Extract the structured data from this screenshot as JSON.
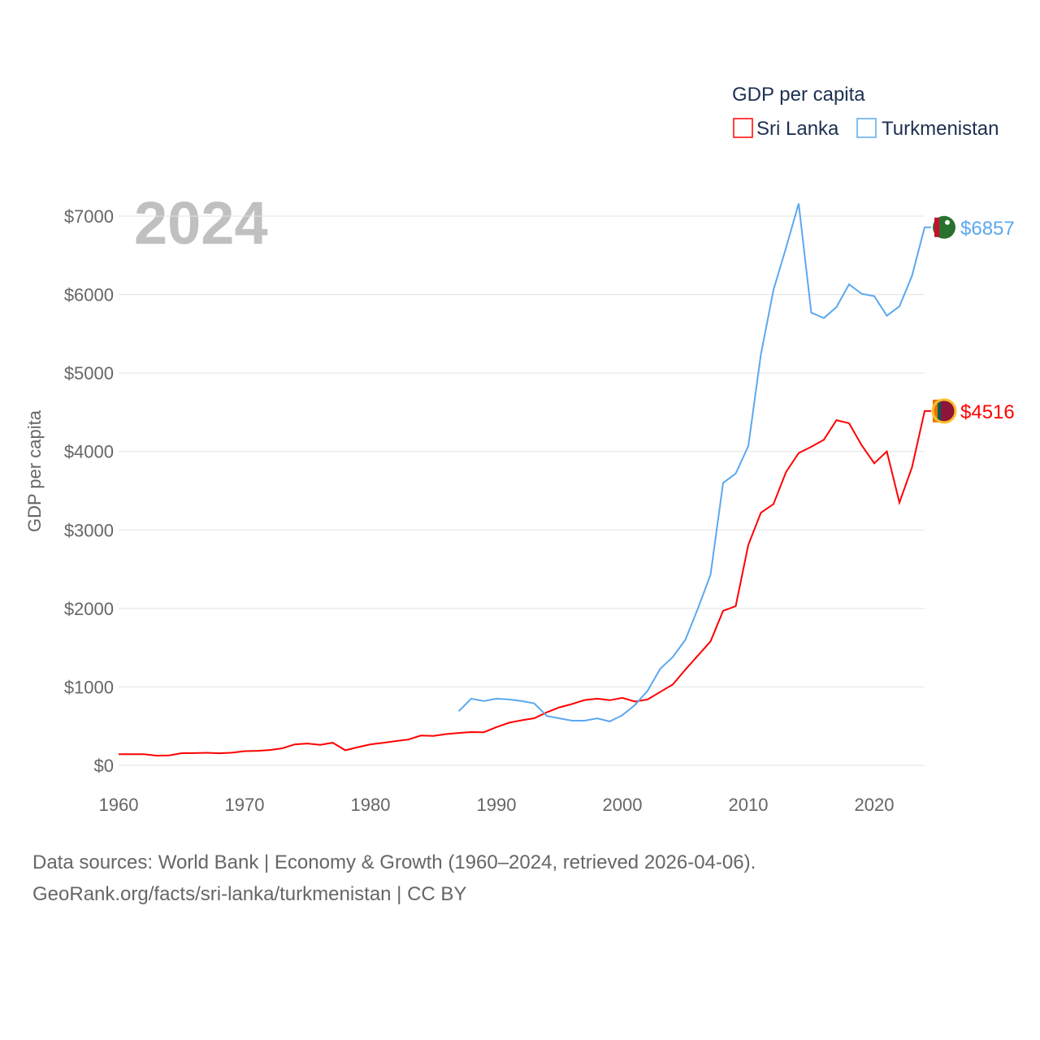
{
  "chart_data": {
    "type": "line",
    "legend_title": "GDP per capita",
    "ylabel": "GDP per capita",
    "xlabel": "",
    "year_label": "2024",
    "legend_position": "top-right",
    "xlim": [
      1960,
      2024
    ],
    "ylim": [
      0,
      7000
    ],
    "x_ticks": [
      "1960",
      "1970",
      "1980",
      "1990",
      "2000",
      "2010",
      "2020"
    ],
    "y_ticks": [
      "$0",
      "$1000",
      "$2000",
      "$3000",
      "$4000",
      "$5000",
      "$6000",
      "$7000"
    ],
    "grid": true,
    "series": [
      {
        "name": "Sri Lanka",
        "color": "#ff0000",
        "end_label": "$4516",
        "start_year": 1960,
        "values": [
          143,
          143,
          142,
          124,
          127,
          155,
          156,
          160,
          154,
          162,
          181,
          185,
          196,
          217,
          268,
          279,
          262,
          289,
          193,
          232,
          268,
          288,
          310,
          329,
          380,
          376,
          399,
          413,
          425,
          423,
          488,
          544,
          575,
          601,
          676,
          739,
          782,
          833,
          850,
          830,
          861,
          813,
          840,
          935,
          1030,
          1220,
          1400,
          1580,
          1970,
          2030,
          2810,
          3220,
          3330,
          3740,
          3980,
          4060,
          4150,
          4400,
          4360,
          4080,
          3850,
          4000,
          3350,
          3800,
          4516
        ]
      },
      {
        "name": "Turkmenistan",
        "color": "#5ba8ef",
        "end_label": "$6857",
        "start_year": 1987,
        "values": [
          690,
          850,
          820,
          850,
          840,
          820,
          790,
          630,
          600,
          570,
          570,
          600,
          560,
          640,
          770,
          950,
          1230,
          1380,
          1600,
          2000,
          2430,
          3600,
          3720,
          4070,
          5240,
          6060,
          6600,
          7160,
          5770,
          5700,
          5840,
          6130,
          6010,
          5980,
          5730,
          5850,
          6240,
          6857
        ]
      }
    ]
  },
  "footer": {
    "line1": "Data sources: World Bank | Economy & Growth (1960–2024, retrieved 2026-04-06).",
    "line2": "GeoRank.org/facts/sri-lanka/turkmenistan | CC BY"
  }
}
